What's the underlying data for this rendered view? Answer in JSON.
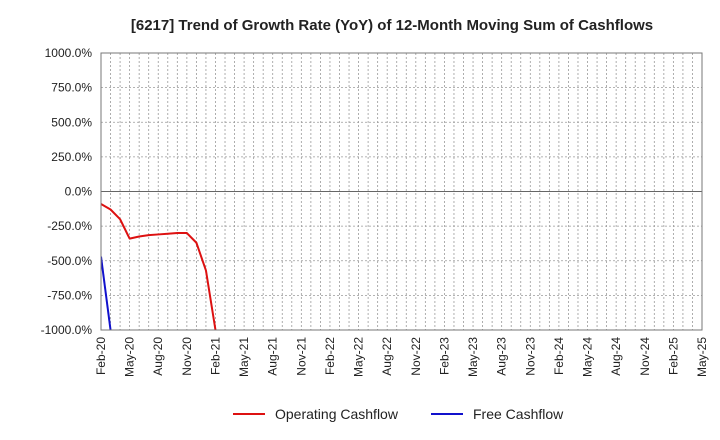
{
  "chart_data": {
    "type": "line",
    "title": "[6217]  Trend of Growth Rate (YoY) of 12-Month Moving Sum of Cashflows",
    "xlabel": "",
    "ylabel": "",
    "ylim": [
      -1000,
      1000
    ],
    "yticks": [
      1000,
      750,
      500,
      250,
      0,
      -250,
      -500,
      -750,
      -1000
    ],
    "ytick_labels": [
      "1000.0%",
      "750.0%",
      "500.0%",
      "250.0%",
      "0.0%",
      "-250.0%",
      "-500.0%",
      "-750.0%",
      "-1000.0%"
    ],
    "x_start": "Feb-20",
    "x_end": "May-25",
    "x_tick_labels": [
      "Feb-20",
      "May-20",
      "Aug-20",
      "Nov-20",
      "Feb-21",
      "May-21",
      "Aug-21",
      "Nov-21",
      "Feb-22",
      "May-22",
      "Aug-22",
      "Nov-22",
      "Feb-23",
      "May-23",
      "Aug-23",
      "Nov-23",
      "Feb-24",
      "May-24",
      "Aug-24",
      "Nov-24",
      "Feb-25",
      "May-25"
    ],
    "grid": true,
    "legend_position": "bottom",
    "series": [
      {
        "name": "Operating Cashflow",
        "color": "#dd1111",
        "points": [
          {
            "x": "Feb-20",
            "y": -90
          },
          {
            "x": "Mar-20",
            "y": -130
          },
          {
            "x": "Apr-20",
            "y": -200
          },
          {
            "x": "May-20",
            "y": -340
          },
          {
            "x": "Jun-20",
            "y": -325
          },
          {
            "x": "Jul-20",
            "y": -315
          },
          {
            "x": "Aug-20",
            "y": -310
          },
          {
            "x": "Sep-20",
            "y": -305
          },
          {
            "x": "Oct-20",
            "y": -300
          },
          {
            "x": "Nov-20",
            "y": -300
          },
          {
            "x": "Dec-20",
            "y": -370
          },
          {
            "x": "Jan-21",
            "y": -570
          },
          {
            "x": "Feb-21",
            "y": -1000
          }
        ]
      },
      {
        "name": "Free Cashflow",
        "color": "#1111cc",
        "points": [
          {
            "x": "Feb-20",
            "y": -470
          },
          {
            "x": "Mar-20",
            "y": -1000
          }
        ]
      }
    ]
  }
}
